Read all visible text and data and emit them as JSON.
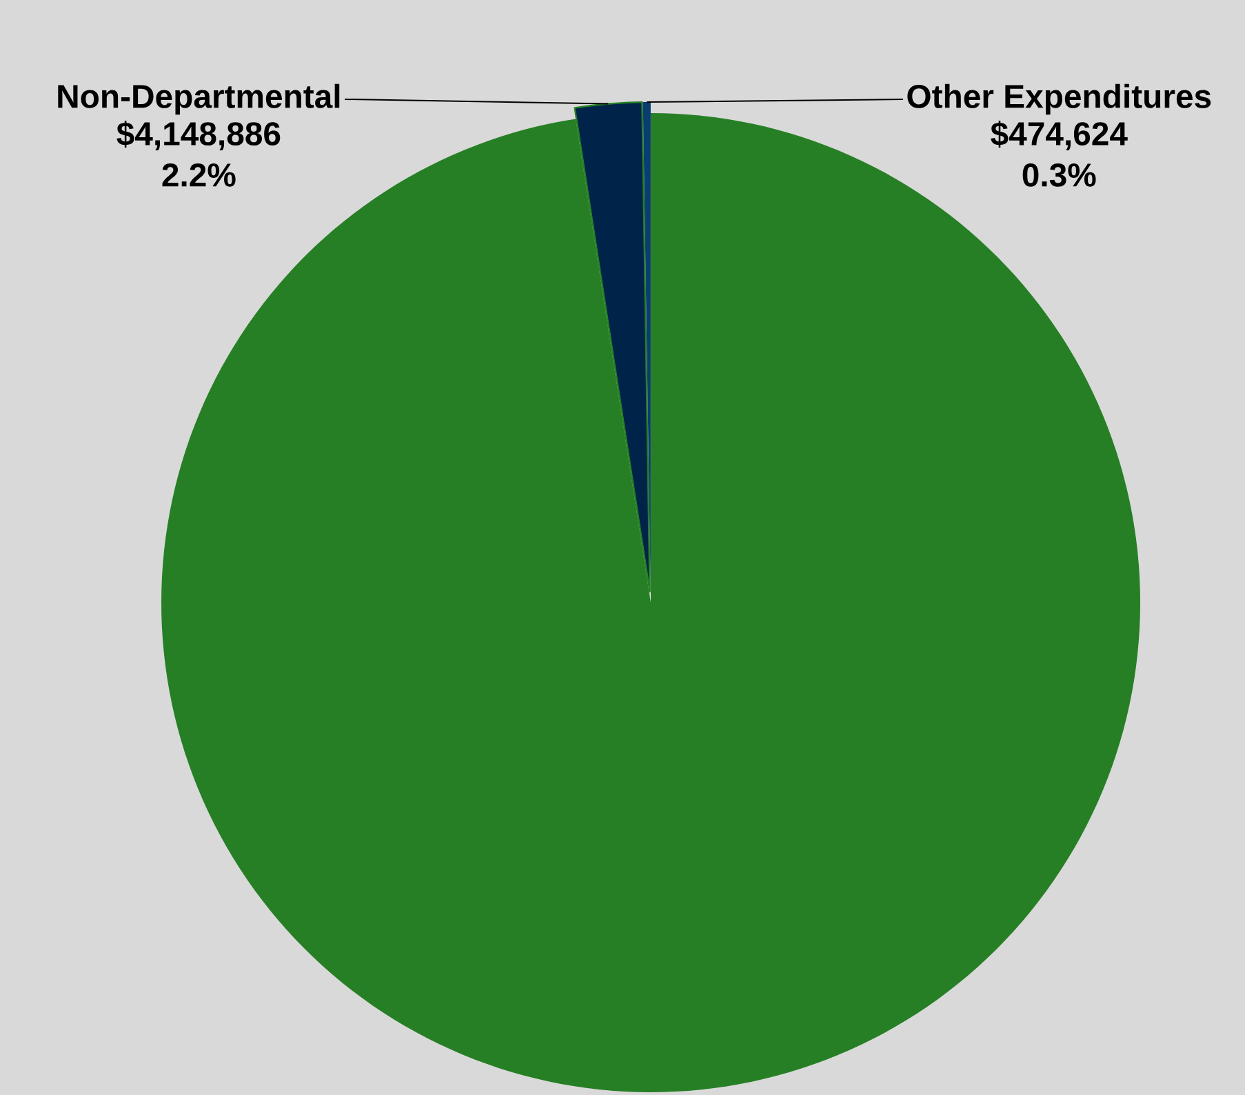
{
  "chart_data": {
    "type": "pie",
    "categories": [
      null,
      "Non-Departmental",
      "Other Expenditures"
    ],
    "values": [
      183962000,
      4148886,
      474624
    ],
    "colors": [
      "#267f24",
      "#00234a",
      "#0a3d70"
    ],
    "value_labels": [
      null,
      "$4,148,886",
      "$474,624"
    ],
    "annotations": [
      "2.2%",
      "0.3%"
    ]
  }
}
